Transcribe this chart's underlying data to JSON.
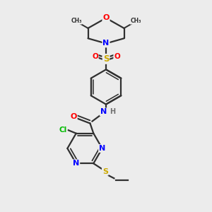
{
  "bg_color": "#ececec",
  "atom_colors": {
    "C": "#303030",
    "N": "#0000ff",
    "O": "#ff0000",
    "S": "#ccaa00",
    "Cl": "#00bb00",
    "H": "#707070"
  },
  "bond_color": "#303030",
  "bond_width": 1.6,
  "fig_bg": "#ececec"
}
